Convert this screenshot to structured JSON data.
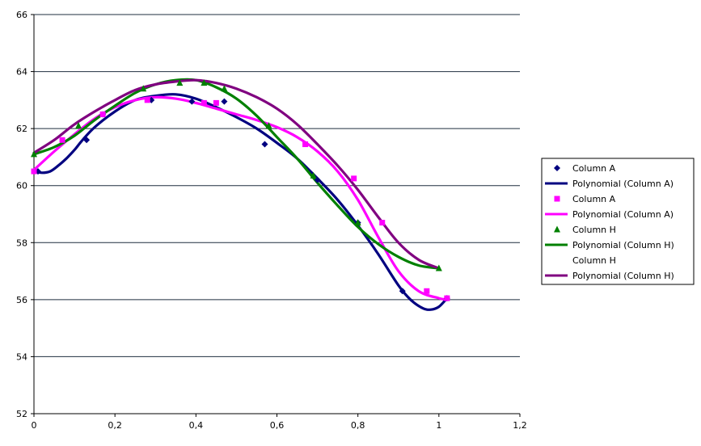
{
  "chart_data": {
    "type": "scatter",
    "title": "",
    "xlabel": "",
    "ylabel": "",
    "xlim": [
      0,
      1.2
    ],
    "ylim": [
      52,
      66
    ],
    "x_ticks": [
      "0",
      "0,2",
      "0,4",
      "0,6",
      "0,8",
      "1",
      "1,2"
    ],
    "y_ticks": [
      "52",
      "54",
      "56",
      "58",
      "60",
      "62",
      "64",
      "66"
    ],
    "grid": "horizontal",
    "legend_position": "right",
    "series": [
      {
        "name": "Column A",
        "kind": "points",
        "marker": "diamond",
        "color": "#000080",
        "x": [
          0.01,
          0.13,
          0.17,
          0.29,
          0.39,
          0.47,
          0.57,
          0.7,
          0.8,
          0.91,
          1.02
        ],
        "y": [
          60.5,
          61.6,
          62.5,
          63.0,
          62.95,
          62.95,
          61.45,
          60.2,
          58.7,
          56.3,
          56.05
        ]
      },
      {
        "name": "Polynomial (Column A)",
        "kind": "curve",
        "color": "#000080",
        "x": [
          0.0,
          0.02,
          0.04,
          0.06,
          0.08,
          0.1,
          0.12,
          0.15,
          0.2,
          0.25,
          0.3,
          0.35,
          0.4,
          0.45,
          0.5,
          0.55,
          0.6,
          0.65,
          0.7,
          0.75,
          0.8,
          0.85,
          0.9,
          0.93,
          0.96,
          0.98,
          1.0,
          1.02
        ],
        "y": [
          60.5,
          60.45,
          60.5,
          60.7,
          60.95,
          61.25,
          61.6,
          62.05,
          62.6,
          63.0,
          63.15,
          63.2,
          63.05,
          62.75,
          62.4,
          62.0,
          61.5,
          60.95,
          60.25,
          59.5,
          58.6,
          57.6,
          56.5,
          56.0,
          55.7,
          55.65,
          55.75,
          56.05
        ]
      },
      {
        "name": "Column A",
        "kind": "points",
        "marker": "square",
        "color": "#ff00ff",
        "x": [
          0.0,
          0.07,
          0.17,
          0.28,
          0.42,
          0.45,
          0.67,
          0.79,
          0.86,
          0.97,
          1.02
        ],
        "y": [
          60.5,
          61.6,
          62.5,
          63.0,
          62.9,
          62.9,
          61.45,
          60.25,
          58.7,
          56.3,
          56.05
        ]
      },
      {
        "name": "Polynomial (Column A)",
        "kind": "curve",
        "color": "#ff00ff",
        "x": [
          0.0,
          0.05,
          0.1,
          0.15,
          0.2,
          0.25,
          0.3,
          0.35,
          0.4,
          0.45,
          0.5,
          0.55,
          0.6,
          0.65,
          0.7,
          0.75,
          0.8,
          0.85,
          0.9,
          0.95,
          1.0,
          1.02
        ],
        "y": [
          60.55,
          61.2,
          61.8,
          62.35,
          62.75,
          63.0,
          63.1,
          63.05,
          62.9,
          62.7,
          62.5,
          62.3,
          62.05,
          61.7,
          61.2,
          60.5,
          59.5,
          58.2,
          57.0,
          56.3,
          56.05,
          56.0
        ]
      },
      {
        "name": "Column H",
        "kind": "points",
        "marker": "triangle",
        "color": "#008000",
        "x": [
          0.0,
          0.11,
          0.27,
          0.36,
          0.42,
          0.47,
          0.58,
          0.69,
          0.8,
          1.0
        ],
        "y": [
          61.1,
          62.1,
          63.4,
          63.6,
          63.6,
          63.4,
          62.1,
          60.35,
          58.7,
          57.1
        ]
      },
      {
        "name": "Polynomial (Column H)",
        "kind": "curve",
        "color": "#008000",
        "x": [
          0.0,
          0.05,
          0.1,
          0.15,
          0.2,
          0.25,
          0.3,
          0.35,
          0.4,
          0.45,
          0.5,
          0.55,
          0.6,
          0.65,
          0.7,
          0.75,
          0.8,
          0.85,
          0.9,
          0.95,
          1.0
        ],
        "y": [
          61.1,
          61.35,
          61.75,
          62.3,
          62.8,
          63.25,
          63.55,
          63.7,
          63.7,
          63.45,
          63.05,
          62.45,
          61.7,
          60.95,
          60.1,
          59.3,
          58.55,
          57.95,
          57.5,
          57.2,
          57.1
        ]
      },
      {
        "name": "Column H",
        "kind": "points",
        "marker": "none",
        "color": "#800080",
        "x": [],
        "y": []
      },
      {
        "name": "Polynomial (Column H)",
        "kind": "curve",
        "color": "#800080",
        "x": [
          0.0,
          0.05,
          0.1,
          0.15,
          0.2,
          0.25,
          0.3,
          0.35,
          0.4,
          0.45,
          0.5,
          0.55,
          0.6,
          0.65,
          0.7,
          0.75,
          0.8,
          0.85,
          0.9,
          0.95,
          1.0
        ],
        "y": [
          61.15,
          61.6,
          62.15,
          62.6,
          63.0,
          63.35,
          63.55,
          63.65,
          63.7,
          63.6,
          63.4,
          63.1,
          62.7,
          62.15,
          61.45,
          60.7,
          59.85,
          58.9,
          58.0,
          57.4,
          57.1
        ]
      }
    ]
  }
}
